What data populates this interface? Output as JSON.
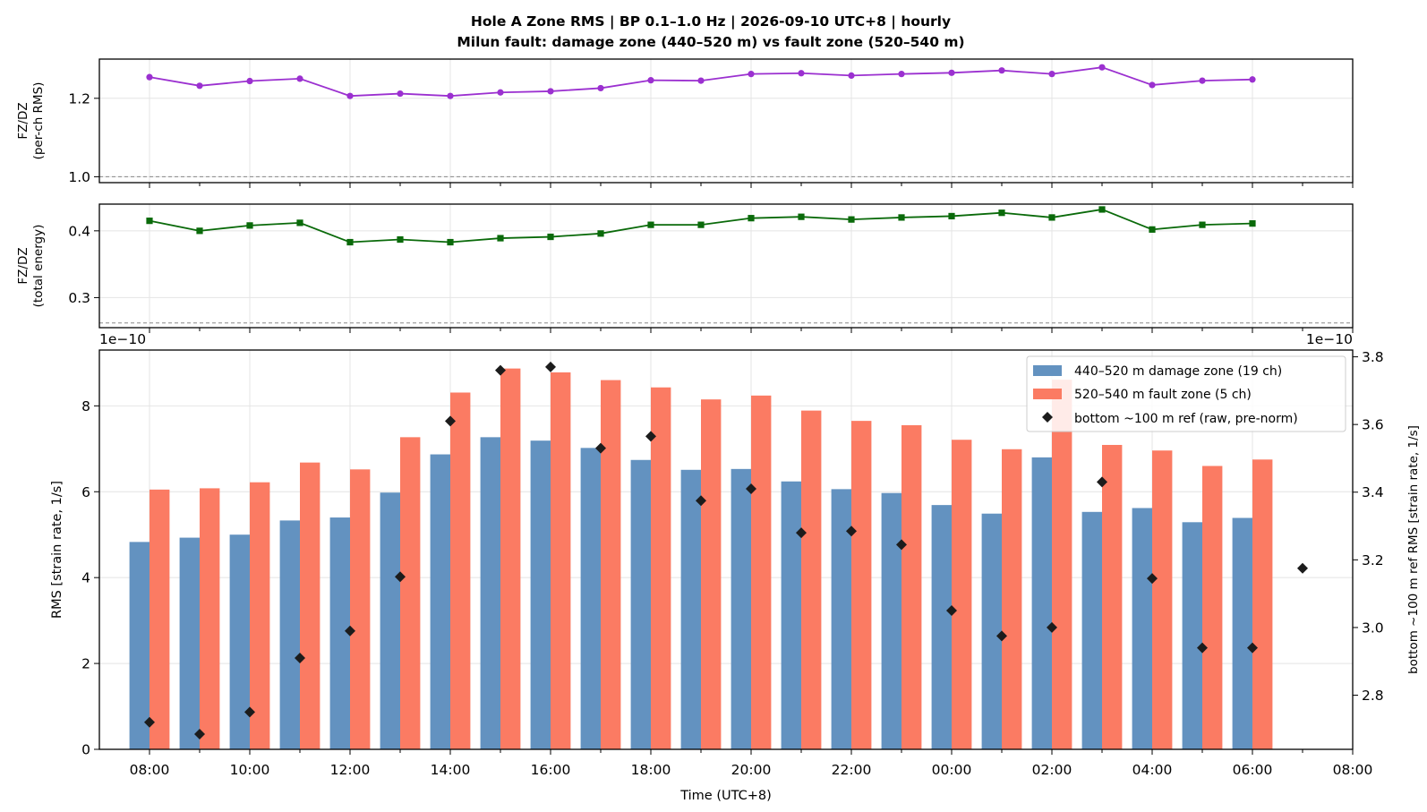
{
  "title_line1": "Hole A Zone RMS  |  BP 0.1–1.0 Hz  |  2026-09-10 UTC+8  |  hourly",
  "title_line2": "Milun fault: damage zone (440–520 m) vs fault zone (520–540 m)",
  "chart_data": [
    {
      "type": "line",
      "ylabel_line1": "FZ/DZ",
      "ylabel_line2": "(per-ch RMS)",
      "ylim": [
        0.985,
        1.3
      ],
      "yticks": [
        1.0,
        1.2
      ],
      "ytick_labels": [
        "1.0",
        "1.2"
      ],
      "reference_line": 1.0,
      "color": "#9b30d0",
      "marker": "circle",
      "x": [
        0,
        1,
        2,
        3,
        4,
        5,
        6,
        7,
        8,
        9,
        10,
        11,
        12,
        13,
        14,
        15,
        16,
        17,
        18,
        19,
        20,
        21,
        22
      ],
      "values": [
        1.254,
        1.232,
        1.244,
        1.25,
        1.206,
        1.212,
        1.206,
        1.215,
        1.218,
        1.226,
        1.246,
        1.245,
        1.262,
        1.264,
        1.258,
        1.262,
        1.265,
        1.271,
        1.262,
        1.279,
        1.234,
        1.245,
        1.248
      ],
      "grid": true
    },
    {
      "type": "line",
      "ylabel_line1": "FZ/DZ",
      "ylabel_line2": "(total energy)",
      "ylim": [
        0.255,
        0.44
      ],
      "yticks": [
        0.3,
        0.4
      ],
      "ytick_labels": [
        "0.3",
        "0.4"
      ],
      "reference_line": 0.262,
      "color": "#0a6a0a",
      "marker": "square",
      "x": [
        0,
        1,
        2,
        3,
        4,
        5,
        6,
        7,
        8,
        9,
        10,
        11,
        12,
        13,
        14,
        15,
        16,
        17,
        18,
        19,
        20,
        21,
        22
      ],
      "values": [
        0.415,
        0.4,
        0.408,
        0.412,
        0.383,
        0.387,
        0.383,
        0.389,
        0.391,
        0.396,
        0.409,
        0.409,
        0.419,
        0.421,
        0.417,
        0.42,
        0.422,
        0.427,
        0.42,
        0.432,
        0.402,
        0.409,
        0.411
      ],
      "grid": true
    },
    {
      "type": "bar",
      "xlabel": "Time (UTC+8)",
      "ylabel": "RMS  [strain rate, 1/s]",
      "ylabel_right": "bottom ~100 m ref RMS  [strain rate, 1/s]",
      "offset_left": "1e−10",
      "offset_right": "1e−10",
      "ylim": [
        0,
        9.3
      ],
      "yticks": [
        0,
        2,
        4,
        6,
        8
      ],
      "ylim_right": [
        2.64,
        3.82
      ],
      "yticks_right": [
        2.8,
        3.0,
        3.2,
        3.4,
        3.6,
        3.8
      ],
      "ytick_labels_right": [
        "2.8",
        "3.0",
        "3.2",
        "3.4",
        "3.6",
        "3.8"
      ],
      "xlim": [
        -1,
        24
      ],
      "xticks": [
        0,
        2,
        4,
        6,
        8,
        10,
        12,
        14,
        16,
        18,
        20,
        22,
        24
      ],
      "xtick_labels": [
        "08:00",
        "10:00",
        "12:00",
        "14:00",
        "16:00",
        "18:00",
        "20:00",
        "22:00",
        "00:00",
        "02:00",
        "04:00",
        "06:00",
        "08:00"
      ],
      "legend_position": "top-right",
      "grid": true,
      "series": [
        {
          "name": "440–520 m  damage zone (19 ch)",
          "color": "#6392c0",
          "x": [
            0,
            1,
            2,
            3,
            4,
            5,
            6,
            7,
            8,
            9,
            10,
            11,
            12,
            13,
            14,
            15,
            16,
            17,
            18,
            19,
            20,
            21,
            22
          ],
          "values": [
            4.83,
            4.93,
            5.0,
            5.33,
            5.4,
            5.98,
            6.87,
            7.27,
            7.19,
            7.02,
            6.74,
            6.51,
            6.53,
            6.24,
            6.06,
            5.97,
            5.69,
            5.49,
            6.8,
            5.53,
            5.62,
            5.29,
            5.39
          ]
        },
        {
          "name": "520–540 m  fault zone (5 ch)",
          "color": "#fb7b63",
          "x": [
            0,
            1,
            2,
            3,
            4,
            5,
            6,
            7,
            8,
            9,
            10,
            11,
            12,
            13,
            14,
            15,
            16,
            17,
            18,
            19,
            20,
            21,
            22
          ],
          "values": [
            6.05,
            6.08,
            6.22,
            6.68,
            6.52,
            7.27,
            8.31,
            8.87,
            8.78,
            8.6,
            8.43,
            8.15,
            8.24,
            7.89,
            7.65,
            7.55,
            7.21,
            6.99,
            8.61,
            7.09,
            6.96,
            6.6,
            6.75
          ]
        },
        {
          "name": "bottom ~100 m ref (raw, pre-norm)",
          "color": "#1c1c1c",
          "marker": "diamond",
          "axis": "right",
          "x": [
            0,
            1,
            2,
            3,
            4,
            5,
            6,
            7,
            8,
            9,
            10,
            11,
            12,
            13,
            14,
            15,
            16,
            17,
            18,
            19,
            20,
            21,
            22,
            23
          ],
          "values": [
            2.72,
            2.685,
            2.75,
            2.91,
            2.99,
            3.15,
            3.61,
            3.76,
            3.77,
            3.53,
            3.565,
            3.375,
            3.41,
            3.28,
            3.285,
            3.245,
            3.05,
            2.975,
            3.0,
            3.43,
            3.145,
            2.94,
            2.94,
            3.175
          ]
        }
      ]
    }
  ]
}
